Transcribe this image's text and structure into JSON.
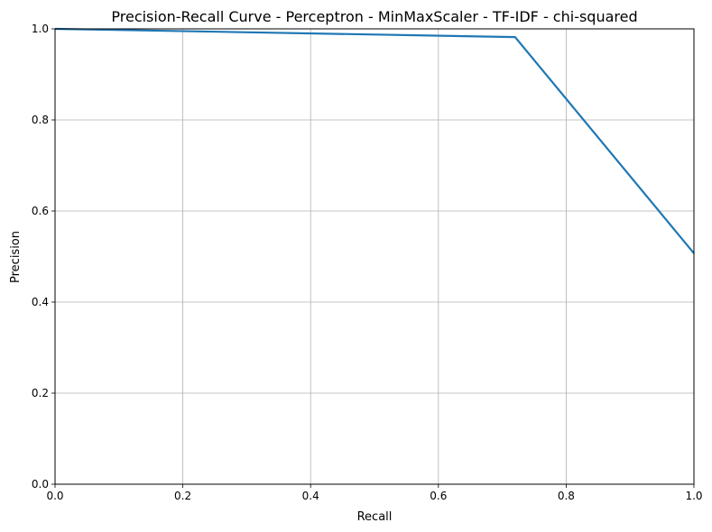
{
  "chart_data": {
    "type": "line",
    "title": "Precision-Recall Curve - Perceptron - MinMaxScaler - TF-IDF - chi-squared",
    "xlabel": "Recall",
    "ylabel": "Precision",
    "xlim": [
      0,
      1
    ],
    "ylim": [
      0,
      1
    ],
    "grid": true,
    "legend": "none",
    "xticks": [
      0.0,
      0.2,
      0.4,
      0.6,
      0.8,
      1.0
    ],
    "yticks": [
      0.0,
      0.2,
      0.4,
      0.6,
      0.8,
      1.0
    ],
    "xtick_labels": [
      "0.0",
      "0.2",
      "0.4",
      "0.6",
      "0.8",
      "1.0"
    ],
    "ytick_labels": [
      "0.0",
      "0.2",
      "0.4",
      "0.6",
      "0.8",
      "1.0"
    ],
    "series": [
      {
        "color": "#1f77b4",
        "x": [
          0.0,
          0.72,
          1.0
        ],
        "y": [
          1.0,
          0.982,
          0.507
        ]
      }
    ]
  }
}
